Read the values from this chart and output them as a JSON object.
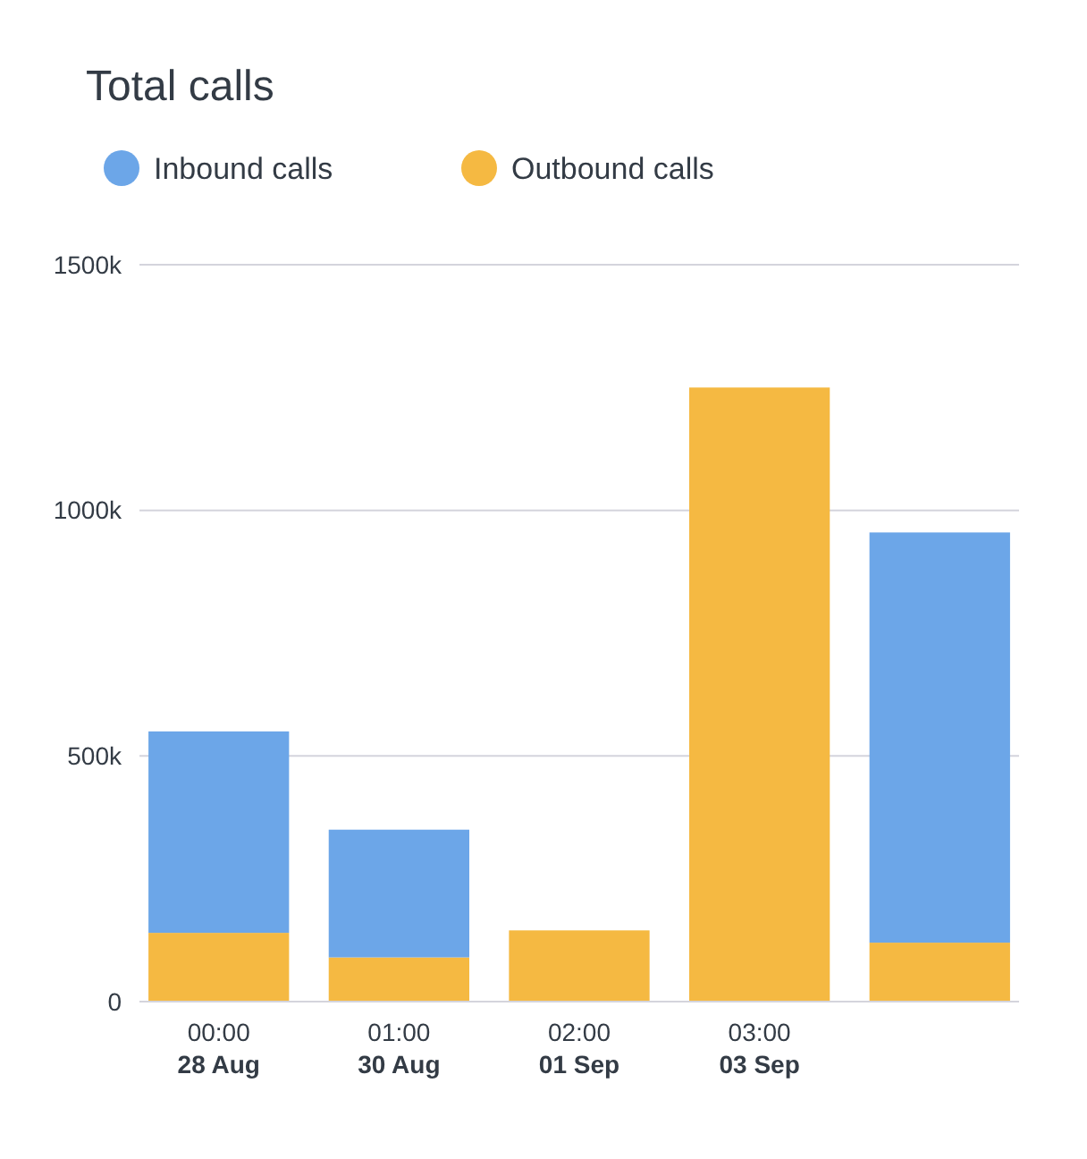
{
  "chart_data": {
    "type": "bar",
    "title": "Total calls",
    "stacked": true,
    "categories": [
      "00:00\n28 Aug",
      "01:00\n30 Aug",
      "02:00\n01 Sep",
      "03:00\n03 Sep",
      null
    ],
    "series": [
      {
        "name": "Outbound calls",
        "color": "#f5b942",
        "values": [
          140000,
          90000,
          145000,
          1250000,
          120000
        ]
      },
      {
        "name": "Inbound calls",
        "color": "#6ca6e8",
        "values": [
          410000,
          260000,
          0,
          0,
          835000
        ]
      }
    ],
    "ylim": [
      0,
      1500000
    ],
    "yticks": [
      {
        "value": 0,
        "label": "0"
      },
      {
        "value": 500000,
        "label": "500k"
      },
      {
        "value": 1000000,
        "label": "1000k"
      },
      {
        "value": 1500000,
        "label": "1500k"
      }
    ],
    "grid": "y",
    "legend": "top"
  }
}
